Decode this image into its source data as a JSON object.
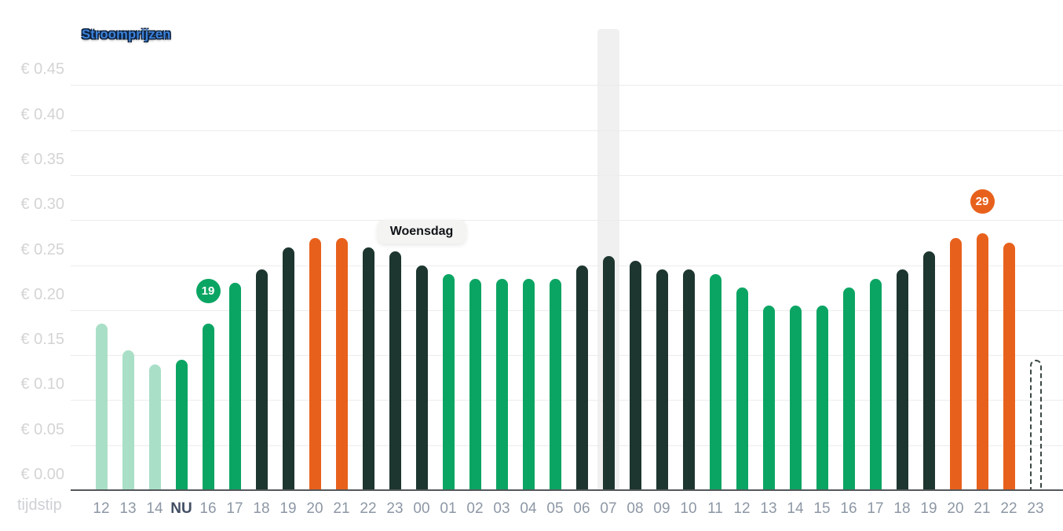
{
  "header": {
    "title": "Stroomprijzen"
  },
  "axis_titles": {
    "x": "tijdstip"
  },
  "colors": {
    "past_bar": "#aadfc7",
    "low_bar": "#0ba563",
    "mid_bar": "#1d362f",
    "peak_bar": "#e8611c",
    "unknown_bar_outline": "#3a4743",
    "grid_line": "#ececec",
    "axis_line": "#54575b",
    "y_tick_label": "#d4d4d4",
    "x_tick_label": "#8d97a5",
    "x_tick_label_now": "#414e63",
    "highlight_band": "#f0f0f0",
    "badge_text": "#ffffff",
    "day_label_bg": "#f4f4f2",
    "title_text": "#3c82da",
    "title_outline": "#0d2240"
  },
  "chart_data": {
    "type": "bar",
    "title": "Stroomprijzen",
    "xlabel": "tijdstip",
    "ylabel": "",
    "ylim": [
      0,
      0.475
    ],
    "grid": true,
    "legend": false,
    "y_axis": {
      "tick_values": [
        0,
        0.05,
        0.1,
        0.15,
        0.2,
        0.25,
        0.3,
        0.35,
        0.4,
        0.45
      ],
      "tick_labels": [
        "€ 0.00",
        "€ 0.05",
        "€ 0.10",
        "€ 0.15",
        "€ 0.20",
        "€ 0.25",
        "€ 0.30",
        "€ 0.35",
        "€ 0.40",
        "€ 0.45"
      ]
    },
    "categories": [
      "12",
      "13",
      "14",
      "NU",
      "16",
      "17",
      "18",
      "19",
      "20",
      "21",
      "22",
      "23",
      "00",
      "01",
      "02",
      "03",
      "04",
      "05",
      "06",
      "07",
      "08",
      "09",
      "10",
      "11",
      "12",
      "13",
      "14",
      "15",
      "16",
      "17",
      "18",
      "19",
      "20",
      "21",
      "22",
      "23"
    ],
    "values": [
      0.185,
      0.155,
      0.14,
      0.145,
      0.185,
      0.23,
      0.245,
      0.27,
      0.28,
      0.28,
      0.27,
      0.265,
      0.25,
      0.24,
      0.235,
      0.235,
      0.235,
      0.235,
      0.25,
      0.26,
      0.255,
      0.245,
      0.245,
      0.24,
      0.225,
      0.205,
      0.205,
      0.205,
      0.225,
      0.235,
      0.245,
      0.265,
      0.28,
      0.285,
      0.275,
      0.145
    ],
    "bar_states": [
      "past",
      "past",
      "past",
      "low",
      "low",
      "low",
      "mid",
      "mid",
      "peak",
      "peak",
      "mid",
      "mid",
      "mid",
      "low",
      "low",
      "low",
      "low",
      "low",
      "mid",
      "mid",
      "mid",
      "mid",
      "mid",
      "low",
      "low",
      "low",
      "low",
      "low",
      "low",
      "low",
      "mid",
      "mid",
      "peak",
      "peak",
      "peak",
      "unknown"
    ],
    "now_index": 3,
    "highlighted_bar": {
      "index": 19,
      "category": "07"
    },
    "badges": [
      {
        "text": "19",
        "bar_index": 4,
        "state": "low"
      },
      {
        "text": "29",
        "bar_index": 33,
        "state": "peak"
      }
    ],
    "day_label": {
      "text": "Woensdag",
      "bar_index": 12
    }
  }
}
